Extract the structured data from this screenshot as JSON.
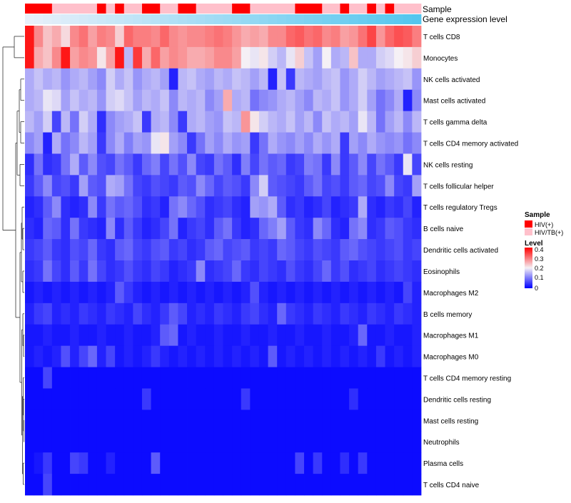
{
  "chart_data": {
    "type": "heatmap",
    "title": "",
    "annotation_tracks": [
      {
        "name": "Sample",
        "label": "Sample"
      },
      {
        "name": "Gene expression level",
        "label": "Gene expression level"
      }
    ],
    "rows": [
      "T cells CD8",
      "Monocytes",
      "NK cells activated",
      "Mast cells activated",
      "T cells gamma delta",
      "T cells CD4 memory activated",
      "NK cells resting",
      "T cells follicular helper",
      "T cells regulatory  Tregs",
      "B cells naive",
      "Dendritic cells activated",
      "Eosinophils",
      "Macrophages M2",
      "B cells memory",
      "Macrophages M1",
      "Macrophages M0",
      "T cells CD4 memory resting",
      "Dendritic cells resting",
      "Mast cells resting",
      "Neutrophils",
      "Plasma cells",
      "T cells CD4 naive"
    ],
    "n_columns": 44,
    "sample_groups": [
      0,
      0,
      0,
      1,
      1,
      1,
      1,
      1,
      0,
      1,
      0,
      1,
      1,
      0,
      0,
      1,
      1,
      0,
      0,
      1,
      1,
      1,
      1,
      0,
      0,
      1,
      1,
      1,
      1,
      1,
      0,
      0,
      0,
      1,
      1,
      0,
      1,
      1,
      0,
      1,
      0,
      1,
      1,
      1
    ],
    "legend": {
      "sample": {
        "title": "Sample",
        "entries": [
          {
            "label": "HIV(+)",
            "color": "#ff0000"
          },
          {
            "label": "HIV/TB(+)",
            "color": "#ffc0cb"
          }
        ]
      },
      "level": {
        "title": "Level",
        "ticks": [
          "0.4",
          "0.3",
          "0.2",
          "0.1",
          "0"
        ],
        "range": [
          0,
          0.42
        ],
        "colors": [
          "#0000ff",
          "#f5f0f5",
          "#ff0000"
        ]
      }
    },
    "values": [
      [
        0.4,
        0.3,
        0.25,
        0.27,
        0.23,
        0.3,
        0.32,
        0.28,
        0.31,
        0.3,
        0.24,
        0.33,
        0.31,
        0.31,
        0.3,
        0.33,
        0.3,
        0.29,
        0.3,
        0.3,
        0.31,
        0.32,
        0.31,
        0.29,
        0.27,
        0.28,
        0.27,
        0.3,
        0.3,
        0.33,
        0.34,
        0.32,
        0.33,
        0.3,
        0.31,
        0.28,
        0.29,
        0.32,
        0.36,
        0.29,
        0.33,
        0.35,
        0.34,
        0.31
      ],
      [
        0.4,
        0.27,
        0.25,
        0.3,
        0.4,
        0.28,
        0.3,
        0.29,
        0.22,
        0.28,
        0.4,
        0.16,
        0.37,
        0.27,
        0.33,
        0.28,
        0.3,
        0.29,
        0.27,
        0.27,
        0.28,
        0.3,
        0.3,
        0.28,
        0.21,
        0.2,
        0.22,
        0.18,
        0.16,
        0.2,
        0.24,
        0.17,
        0.14,
        0.21,
        0.15,
        0.16,
        0.25,
        0.15,
        0.15,
        0.18,
        0.19,
        0.21,
        0.22,
        0.24
      ],
      [
        0.15,
        0.17,
        0.15,
        0.16,
        0.13,
        0.15,
        0.16,
        0.14,
        0.12,
        0.18,
        0.15,
        0.17,
        0.13,
        0.15,
        0.16,
        0.14,
        0.03,
        0.16,
        0.17,
        0.15,
        0.14,
        0.16,
        0.15,
        0.17,
        0.16,
        0.14,
        0.16,
        0.03,
        0.17,
        0.05,
        0.16,
        0.15,
        0.14,
        0.16,
        0.17,
        0.13,
        0.15,
        0.18,
        0.16,
        0.14,
        0.15,
        0.16,
        0.17,
        0.13
      ],
      [
        0.15,
        0.16,
        0.2,
        0.19,
        0.14,
        0.17,
        0.15,
        0.16,
        0.13,
        0.18,
        0.19,
        0.17,
        0.14,
        0.16,
        0.15,
        0.17,
        0.12,
        0.16,
        0.15,
        0.16,
        0.12,
        0.14,
        0.27,
        0.15,
        0.16,
        0.1,
        0.12,
        0.13,
        0.15,
        0.16,
        0.14,
        0.12,
        0.16,
        0.15,
        0.17,
        0.13,
        0.15,
        0.18,
        0.14,
        0.1,
        0.12,
        0.15,
        0.03,
        0.12
      ],
      [
        0.16,
        0.14,
        0.18,
        0.06,
        0.16,
        0.1,
        0.18,
        0.15,
        0.04,
        0.12,
        0.14,
        0.15,
        0.17,
        0.05,
        0.15,
        0.16,
        0.12,
        0.05,
        0.15,
        0.16,
        0.14,
        0.13,
        0.17,
        0.16,
        0.29,
        0.22,
        0.18,
        0.16,
        0.15,
        0.17,
        0.14,
        0.16,
        0.12,
        0.17,
        0.15,
        0.16,
        0.14,
        0.2,
        0.16,
        0.1,
        0.14,
        0.16,
        0.12,
        0.16
      ],
      [
        0.12,
        0.14,
        0.03,
        0.15,
        0.1,
        0.12,
        0.16,
        0.14,
        0.05,
        0.12,
        0.15,
        0.11,
        0.14,
        0.13,
        0.2,
        0.22,
        0.14,
        0.12,
        0.05,
        0.1,
        0.14,
        0.12,
        0.15,
        0.13,
        0.14,
        0.05,
        0.1,
        0.15,
        0.13,
        0.12,
        0.14,
        0.12,
        0.15,
        0.13,
        0.15,
        0.05,
        0.14,
        0.12,
        0.15,
        0.13,
        0.12,
        0.13,
        0.1,
        0.12
      ],
      [
        0.04,
        0.1,
        0.04,
        0.05,
        0.1,
        0.15,
        0.08,
        0.12,
        0.07,
        0.06,
        0.1,
        0.08,
        0.05,
        0.09,
        0.11,
        0.06,
        0.1,
        0.07,
        0.12,
        0.06,
        0.05,
        0.1,
        0.08,
        0.04,
        0.11,
        0.06,
        0.1,
        0.08,
        0.09,
        0.05,
        0.06,
        0.11,
        0.1,
        0.05,
        0.12,
        0.05,
        0.08,
        0.12,
        0.06,
        0.1,
        0.08,
        0.05,
        0.2,
        0.06
      ],
      [
        0.05,
        0.08,
        0.12,
        0.06,
        0.07,
        0.05,
        0.14,
        0.08,
        0.07,
        0.15,
        0.14,
        0.1,
        0.06,
        0.05,
        0.07,
        0.06,
        0.05,
        0.08,
        0.07,
        0.12,
        0.09,
        0.06,
        0.08,
        0.07,
        0.05,
        0.12,
        0.18,
        0.08,
        0.07,
        0.06,
        0.05,
        0.08,
        0.1,
        0.06,
        0.07,
        0.05,
        0.08,
        0.09,
        0.06,
        0.07,
        0.12,
        0.06,
        0.05,
        0.14
      ],
      [
        0.03,
        0.04,
        0.08,
        0.12,
        0.04,
        0.03,
        0.04,
        0.12,
        0.05,
        0.1,
        0.08,
        0.09,
        0.07,
        0.04,
        0.05,
        0.03,
        0.1,
        0.12,
        0.09,
        0.07,
        0.04,
        0.05,
        0.06,
        0.04,
        0.03,
        0.14,
        0.13,
        0.15,
        0.08,
        0.04,
        0.05,
        0.03,
        0.04,
        0.06,
        0.03,
        0.04,
        0.05,
        0.15,
        0.04,
        0.03,
        0.05,
        0.04,
        0.06,
        0.03
      ],
      [
        0.04,
        0.03,
        0.09,
        0.08,
        0.04,
        0.1,
        0.05,
        0.04,
        0.03,
        0.12,
        0.04,
        0.08,
        0.05,
        0.03,
        0.04,
        0.06,
        0.1,
        0.03,
        0.05,
        0.06,
        0.04,
        0.08,
        0.1,
        0.05,
        0.03,
        0.04,
        0.09,
        0.11,
        0.14,
        0.08,
        0.05,
        0.04,
        0.12,
        0.09,
        0.04,
        0.03,
        0.1,
        0.12,
        0.04,
        0.05,
        0.08,
        0.07,
        0.05,
        0.04
      ],
      [
        0.05,
        0.06,
        0.08,
        0.05,
        0.04,
        0.07,
        0.06,
        0.09,
        0.05,
        0.04,
        0.08,
        0.09,
        0.06,
        0.05,
        0.07,
        0.08,
        0.05,
        0.06,
        0.04,
        0.05,
        0.08,
        0.09,
        0.06,
        0.07,
        0.08,
        0.05,
        0.06,
        0.05,
        0.09,
        0.08,
        0.06,
        0.05,
        0.07,
        0.06,
        0.05,
        0.08,
        0.09,
        0.07,
        0.06,
        0.05,
        0.06,
        0.07,
        0.05,
        0.06
      ],
      [
        0.04,
        0.05,
        0.1,
        0.06,
        0.04,
        0.08,
        0.05,
        0.1,
        0.06,
        0.04,
        0.05,
        0.07,
        0.05,
        0.04,
        0.06,
        0.05,
        0.03,
        0.04,
        0.05,
        0.12,
        0.04,
        0.05,
        0.06,
        0.09,
        0.05,
        0.04,
        0.06,
        0.05,
        0.04,
        0.07,
        0.05,
        0.04,
        0.06,
        0.09,
        0.05,
        0.07,
        0.04,
        0.05,
        0.06,
        0.04,
        0.05,
        0.06,
        0.05,
        0.04
      ],
      [
        0.02,
        0.03,
        0.02,
        0.03,
        0.02,
        0.03,
        0.02,
        0.03,
        0.02,
        0.03,
        0.08,
        0.05,
        0.03,
        0.02,
        0.03,
        0.02,
        0.03,
        0.02,
        0.03,
        0.02,
        0.03,
        0.02,
        0.03,
        0.02,
        0.03,
        0.07,
        0.03,
        0.02,
        0.03,
        0.02,
        0.03,
        0.02,
        0.03,
        0.02,
        0.03,
        0.02,
        0.03,
        0.02,
        0.03,
        0.02,
        0.03,
        0.02,
        0.06,
        0.03
      ],
      [
        0.03,
        0.05,
        0.06,
        0.03,
        0.04,
        0.03,
        0.05,
        0.04,
        0.03,
        0.05,
        0.04,
        0.03,
        0.06,
        0.04,
        0.03,
        0.05,
        0.08,
        0.06,
        0.03,
        0.04,
        0.03,
        0.05,
        0.04,
        0.03,
        0.05,
        0.06,
        0.04,
        0.03,
        0.09,
        0.05,
        0.04,
        0.03,
        0.05,
        0.04,
        0.03,
        0.05,
        0.04,
        0.03,
        0.05,
        0.04,
        0.03,
        0.05,
        0.04,
        0.03
      ],
      [
        0.02,
        0.02,
        0.03,
        0.02,
        0.02,
        0.03,
        0.02,
        0.02,
        0.03,
        0.02,
        0.02,
        0.03,
        0.02,
        0.02,
        0.03,
        0.08,
        0.09,
        0.02,
        0.03,
        0.02,
        0.02,
        0.03,
        0.02,
        0.02,
        0.03,
        0.02,
        0.02,
        0.03,
        0.02,
        0.02,
        0.03,
        0.02,
        0.02,
        0.03,
        0.02,
        0.02,
        0.03,
        0.09,
        0.02,
        0.02,
        0.03,
        0.02,
        0.02,
        0.03
      ],
      [
        0.02,
        0.03,
        0.02,
        0.03,
        0.07,
        0.03,
        0.06,
        0.09,
        0.03,
        0.06,
        0.02,
        0.03,
        0.02,
        0.03,
        0.05,
        0.03,
        0.02,
        0.03,
        0.02,
        0.03,
        0.02,
        0.03,
        0.02,
        0.03,
        0.02,
        0.03,
        0.02,
        0.08,
        0.02,
        0.03,
        0.02,
        0.03,
        0.02,
        0.03,
        0.02,
        0.03,
        0.02,
        0.03,
        0.02,
        0.05,
        0.02,
        0.03,
        0.02,
        0.03
      ],
      [
        0.01,
        0.01,
        0.06,
        0.01,
        0.01,
        0.01,
        0.01,
        0.01,
        0.01,
        0.01,
        0.01,
        0.01,
        0.01,
        0.01,
        0.01,
        0.01,
        0.01,
        0.01,
        0.01,
        0.01,
        0.01,
        0.01,
        0.01,
        0.01,
        0.01,
        0.01,
        0.01,
        0.01,
        0.01,
        0.01,
        0.01,
        0.01,
        0.01,
        0.01,
        0.01,
        0.01,
        0.01,
        0.01,
        0.01,
        0.01,
        0.01,
        0.01,
        0.01,
        0.01
      ],
      [
        0.01,
        0.01,
        0.01,
        0.01,
        0.01,
        0.01,
        0.01,
        0.01,
        0.01,
        0.01,
        0.01,
        0.01,
        0.01,
        0.05,
        0.01,
        0.01,
        0.01,
        0.01,
        0.01,
        0.01,
        0.01,
        0.01,
        0.01,
        0.01,
        0.05,
        0.01,
        0.01,
        0.01,
        0.01,
        0.01,
        0.01,
        0.01,
        0.01,
        0.01,
        0.01,
        0.01,
        0.04,
        0.01,
        0.01,
        0.01,
        0.01,
        0.01,
        0.01,
        0.01
      ],
      [
        0.01,
        0.01,
        0.01,
        0.01,
        0.01,
        0.01,
        0.01,
        0.01,
        0.01,
        0.01,
        0.01,
        0.01,
        0.01,
        0.01,
        0.01,
        0.01,
        0.01,
        0.01,
        0.01,
        0.01,
        0.01,
        0.01,
        0.01,
        0.01,
        0.01,
        0.01,
        0.01,
        0.01,
        0.01,
        0.01,
        0.01,
        0.01,
        0.01,
        0.01,
        0.01,
        0.01,
        0.01,
        0.01,
        0.01,
        0.01,
        0.01,
        0.01,
        0.01,
        0.01
      ],
      [
        0.01,
        0.01,
        0.01,
        0.01,
        0.01,
        0.01,
        0.01,
        0.01,
        0.01,
        0.01,
        0.01,
        0.01,
        0.01,
        0.01,
        0.01,
        0.01,
        0.01,
        0.01,
        0.01,
        0.01,
        0.01,
        0.01,
        0.01,
        0.01,
        0.01,
        0.01,
        0.01,
        0.01,
        0.01,
        0.01,
        0.01,
        0.01,
        0.01,
        0.01,
        0.01,
        0.01,
        0.01,
        0.01,
        0.01,
        0.01,
        0.01,
        0.01,
        0.01,
        0.01
      ],
      [
        0.01,
        0.02,
        0.05,
        0.01,
        0.01,
        0.06,
        0.05,
        0.01,
        0.01,
        0.03,
        0.01,
        0.01,
        0.01,
        0.01,
        0.08,
        0.01,
        0.01,
        0.01,
        0.01,
        0.01,
        0.01,
        0.01,
        0.01,
        0.01,
        0.01,
        0.01,
        0.01,
        0.01,
        0.01,
        0.01,
        0.06,
        0.01,
        0.05,
        0.01,
        0.01,
        0.04,
        0.01,
        0.05,
        0.01,
        0.01,
        0.01,
        0.01,
        0.01,
        0.01
      ],
      [
        0.01,
        0.01,
        0.06,
        0.01,
        0.01,
        0.01,
        0.01,
        0.01,
        0.01,
        0.01,
        0.01,
        0.01,
        0.01,
        0.01,
        0.01,
        0.01,
        0.01,
        0.01,
        0.01,
        0.01,
        0.01,
        0.01,
        0.01,
        0.01,
        0.01,
        0.01,
        0.01,
        0.01,
        0.01,
        0.01,
        0.01,
        0.01,
        0.01,
        0.01,
        0.01,
        0.01,
        0.01,
        0.01,
        0.01,
        0.01,
        0.01,
        0.01,
        0.01,
        0.01
      ]
    ]
  }
}
